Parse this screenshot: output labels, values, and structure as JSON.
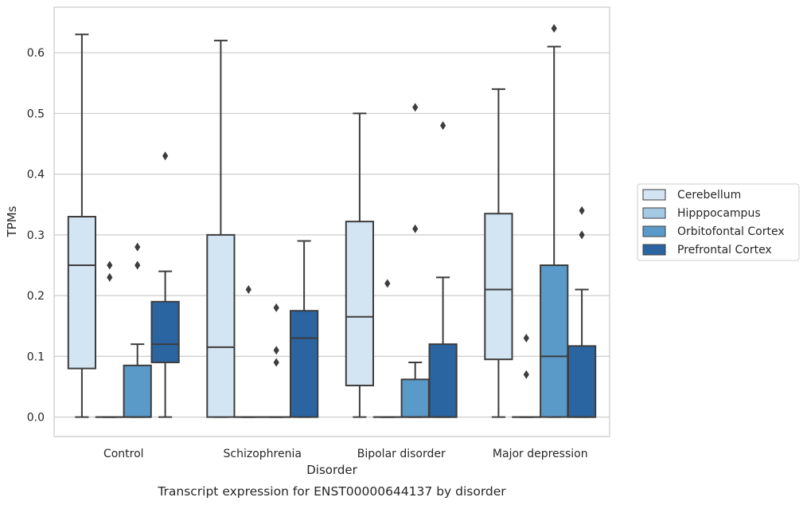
{
  "chart_data": {
    "type": "box",
    "title": "",
    "caption": "Transcript expression for ENST00000644137 by disorder",
    "xlabel": "Disorder",
    "ylabel": "TPMs",
    "ylim": [
      -0.032,
      0.675
    ],
    "yticks": [
      0.0,
      0.1,
      0.2,
      0.3,
      0.4,
      0.5,
      0.6
    ],
    "ytick_labels": [
      "0.0",
      "0.1",
      "0.2",
      "0.3",
      "0.4",
      "0.5",
      "0.6"
    ],
    "grid": "horizontal",
    "legend_placement": "right",
    "categories": [
      "Control",
      "Schizophrenia",
      "Bipolar disorder",
      "Major depression"
    ],
    "series": [
      {
        "name": "Cerebellum",
        "color": "#d3e4f3",
        "boxes": [
          {
            "whisker_low": 0.0,
            "q1": 0.08,
            "median": 0.25,
            "q3": 0.33,
            "whisker_high": 0.63,
            "outliers": []
          },
          {
            "whisker_low": 0.0,
            "q1": 0.0,
            "median": 0.115,
            "q3": 0.3,
            "whisker_high": 0.62,
            "outliers": []
          },
          {
            "whisker_low": 0.0,
            "q1": 0.052,
            "median": 0.165,
            "q3": 0.322,
            "whisker_high": 0.5,
            "outliers": []
          },
          {
            "whisker_low": 0.0,
            "q1": 0.095,
            "median": 0.21,
            "q3": 0.335,
            "whisker_high": 0.54,
            "outliers": []
          }
        ]
      },
      {
        "name": "Hipppocampus",
        "color": "#a4c9e3",
        "boxes": [
          {
            "whisker_low": 0.0,
            "q1": 0.0,
            "median": 0.0,
            "q3": 0.0,
            "whisker_high": 0.0,
            "outliers": [
              0.23,
              0.25
            ]
          },
          {
            "whisker_low": 0.0,
            "q1": 0.0,
            "median": 0.0,
            "q3": 0.0,
            "whisker_high": 0.0,
            "outliers": [
              0.21
            ]
          },
          {
            "whisker_low": 0.0,
            "q1": 0.0,
            "median": 0.0,
            "q3": 0.0,
            "whisker_high": 0.0,
            "outliers": [
              0.22
            ]
          },
          {
            "whisker_low": 0.0,
            "q1": 0.0,
            "median": 0.0,
            "q3": 0.0,
            "whisker_high": 0.0,
            "outliers": [
              0.07,
              0.13
            ]
          }
        ]
      },
      {
        "name": "Orbitofontal Cortex",
        "color": "#5a9ac8",
        "boxes": [
          {
            "whisker_low": 0.0,
            "q1": 0.0,
            "median": 0.0,
            "q3": 0.085,
            "whisker_high": 0.12,
            "outliers": [
              0.25,
              0.28
            ]
          },
          {
            "whisker_low": 0.0,
            "q1": 0.0,
            "median": 0.0,
            "q3": 0.0,
            "whisker_high": 0.0,
            "outliers": [
              0.09,
              0.11,
              0.18
            ]
          },
          {
            "whisker_low": 0.0,
            "q1": 0.0,
            "median": 0.0,
            "q3": 0.062,
            "whisker_high": 0.09,
            "outliers": [
              0.31,
              0.51
            ]
          },
          {
            "whisker_low": 0.0,
            "q1": 0.0,
            "median": 0.1,
            "q3": 0.25,
            "whisker_high": 0.61,
            "outliers": [
              0.64
            ]
          }
        ]
      },
      {
        "name": "Prefrontal Cortex",
        "color": "#2a64a1",
        "boxes": [
          {
            "whisker_low": 0.0,
            "q1": 0.09,
            "median": 0.12,
            "q3": 0.19,
            "whisker_high": 0.24,
            "outliers": [
              0.43
            ]
          },
          {
            "whisker_low": 0.0,
            "q1": 0.0,
            "median": 0.13,
            "q3": 0.175,
            "whisker_high": 0.29,
            "outliers": []
          },
          {
            "whisker_low": 0.0,
            "q1": 0.0,
            "median": 0.0,
            "q3": 0.12,
            "whisker_high": 0.23,
            "outliers": [
              0.48
            ]
          },
          {
            "whisker_low": 0.0,
            "q1": 0.0,
            "median": 0.0,
            "q3": 0.117,
            "whisker_high": 0.21,
            "outliers": [
              0.3,
              0.34
            ]
          }
        ]
      }
    ]
  }
}
